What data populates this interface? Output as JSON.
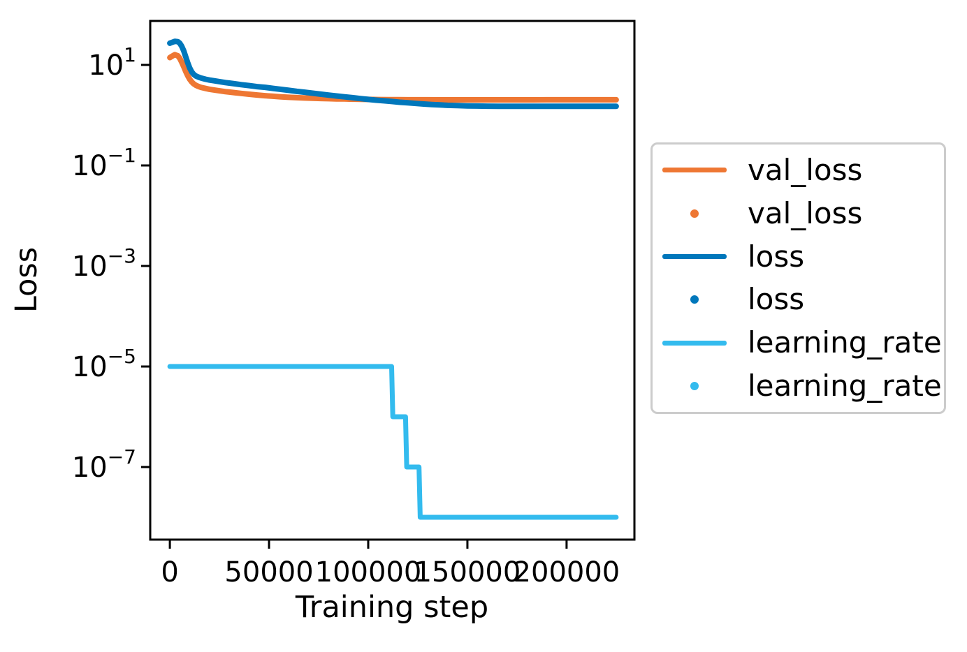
{
  "figure": {
    "background": "#ffffff",
    "text_color": "#000000",
    "spine_color": "#000000",
    "legend_border_color": "#cccccc"
  },
  "chart_data": {
    "type": "line",
    "title": "",
    "xlabel": "Training step",
    "ylabel": "Loss",
    "grid": false,
    "y_scale": "log",
    "legend_position": "right of axes",
    "xlim": [
      -9900,
      234200
    ],
    "ylim_exponents": [
      -8.444,
      1.875
    ],
    "x_ticks": [
      0,
      50000,
      100000,
      150000,
      200000
    ],
    "x_tick_labels": [
      "0",
      "50000",
      "100000",
      "150000",
      "200000"
    ],
    "y_tick_exponents": [
      1,
      -1,
      -3,
      -5,
      -7
    ],
    "y_tick_mantissa": "10",
    "series": [
      {
        "name": "val_loss",
        "color": "#EE7733",
        "style": "line+scatter",
        "points": [
          [
            0,
            14
          ],
          [
            1000,
            14.8
          ],
          [
            2500,
            16
          ],
          [
            4000,
            15.2
          ],
          [
            5000,
            13.5
          ],
          [
            6000,
            11.3
          ],
          [
            7000,
            9.2
          ],
          [
            8000,
            7.4
          ],
          [
            9000,
            6.1
          ],
          [
            10000,
            5.2
          ],
          [
            11000,
            4.6
          ],
          [
            12000,
            4.2
          ],
          [
            13000,
            3.95
          ],
          [
            14000,
            3.78
          ],
          [
            15000,
            3.65
          ],
          [
            16000,
            3.55
          ],
          [
            18000,
            3.4
          ],
          [
            20000,
            3.28
          ],
          [
            22000,
            3.18
          ],
          [
            25000,
            3.05
          ],
          [
            28000,
            2.94
          ],
          [
            30000,
            2.88
          ],
          [
            33000,
            2.79
          ],
          [
            36000,
            2.71
          ],
          [
            40000,
            2.61
          ],
          [
            44000,
            2.52
          ],
          [
            48000,
            2.44
          ],
          [
            52000,
            2.38
          ],
          [
            56000,
            2.32
          ],
          [
            60000,
            2.27
          ],
          [
            64000,
            2.23
          ],
          [
            68000,
            2.2
          ],
          [
            72000,
            2.17
          ],
          [
            76000,
            2.15
          ],
          [
            80000,
            2.13
          ],
          [
            84000,
            2.11
          ],
          [
            88000,
            2.1
          ],
          [
            92000,
            2.08
          ],
          [
            96000,
            2.07
          ],
          [
            100000,
            2.06
          ],
          [
            105000,
            2.05
          ],
          [
            110000,
            2.04
          ],
          [
            115000,
            2.04
          ],
          [
            120000,
            2.03
          ],
          [
            125000,
            2.03
          ],
          [
            130000,
            2.03
          ],
          [
            140000,
            2.02
          ],
          [
            150000,
            2.02
          ],
          [
            160000,
            2.02
          ],
          [
            170000,
            2.02
          ],
          [
            180000,
            2.02
          ],
          [
            190000,
            2.03
          ],
          [
            200000,
            2.03
          ],
          [
            210000,
            2.03
          ],
          [
            218000,
            2.03
          ],
          [
            225000,
            2.03
          ]
        ]
      },
      {
        "name": "loss",
        "color": "#0077BB",
        "style": "line+scatter",
        "points": [
          [
            0,
            27
          ],
          [
            1000,
            28
          ],
          [
            2500,
            29.5
          ],
          [
            4000,
            29
          ],
          [
            5000,
            27
          ],
          [
            6000,
            23.5
          ],
          [
            7000,
            19
          ],
          [
            8000,
            14.5
          ],
          [
            9000,
            11
          ],
          [
            10000,
            8.7
          ],
          [
            11000,
            7.3
          ],
          [
            12000,
            6.5
          ],
          [
            13000,
            6.05
          ],
          [
            14000,
            5.8
          ],
          [
            15000,
            5.6
          ],
          [
            16000,
            5.45
          ],
          [
            18000,
            5.2
          ],
          [
            20000,
            5.0
          ],
          [
            22000,
            4.85
          ],
          [
            25000,
            4.65
          ],
          [
            28000,
            4.45
          ],
          [
            30000,
            4.35
          ],
          [
            33000,
            4.2
          ],
          [
            36000,
            4.05
          ],
          [
            40000,
            3.88
          ],
          [
            44000,
            3.7
          ],
          [
            48000,
            3.58
          ],
          [
            52000,
            3.42
          ],
          [
            56000,
            3.27
          ],
          [
            60000,
            3.12
          ],
          [
            64000,
            2.98
          ],
          [
            68000,
            2.86
          ],
          [
            72000,
            2.74
          ],
          [
            76000,
            2.62
          ],
          [
            80000,
            2.51
          ],
          [
            84000,
            2.41
          ],
          [
            88000,
            2.32
          ],
          [
            92000,
            2.23
          ],
          [
            96000,
            2.14
          ],
          [
            100000,
            2.06
          ],
          [
            104000,
            1.99
          ],
          [
            108000,
            1.93
          ],
          [
            112000,
            1.87
          ],
          [
            116000,
            1.81
          ],
          [
            120000,
            1.76
          ],
          [
            124000,
            1.71
          ],
          [
            128000,
            1.67
          ],
          [
            132000,
            1.63
          ],
          [
            136000,
            1.6
          ],
          [
            140000,
            1.57
          ],
          [
            145000,
            1.55
          ],
          [
            150000,
            1.53
          ],
          [
            155000,
            1.52
          ],
          [
            160000,
            1.51
          ],
          [
            166000,
            1.5
          ],
          [
            172000,
            1.5
          ],
          [
            180000,
            1.5
          ],
          [
            190000,
            1.5
          ],
          [
            200000,
            1.5
          ],
          [
            210000,
            1.5
          ],
          [
            218000,
            1.5
          ],
          [
            225000,
            1.5
          ]
        ]
      },
      {
        "name": "learning_rate",
        "color": "#33BBEE",
        "style": "line+scatter",
        "points": [
          [
            0,
            1e-05
          ],
          [
            111800,
            1e-05
          ],
          [
            112400,
            1e-06
          ],
          [
            118800,
            1e-06
          ],
          [
            119400,
            1e-07
          ],
          [
            125600,
            1e-07
          ],
          [
            126200,
            1e-08
          ],
          [
            225000,
            1e-08
          ]
        ]
      }
    ],
    "legend": {
      "entries": [
        {
          "label": "val_loss",
          "color": "#EE7733",
          "marker": "line"
        },
        {
          "label": "val_loss",
          "color": "#EE7733",
          "marker": "dot"
        },
        {
          "label": "loss",
          "color": "#0077BB",
          "marker": "line"
        },
        {
          "label": "loss",
          "color": "#0077BB",
          "marker": "dot"
        },
        {
          "label": "learning_rate",
          "color": "#33BBEE",
          "marker": "line"
        },
        {
          "label": "learning_rate",
          "color": "#33BBEE",
          "marker": "dot"
        }
      ]
    }
  }
}
